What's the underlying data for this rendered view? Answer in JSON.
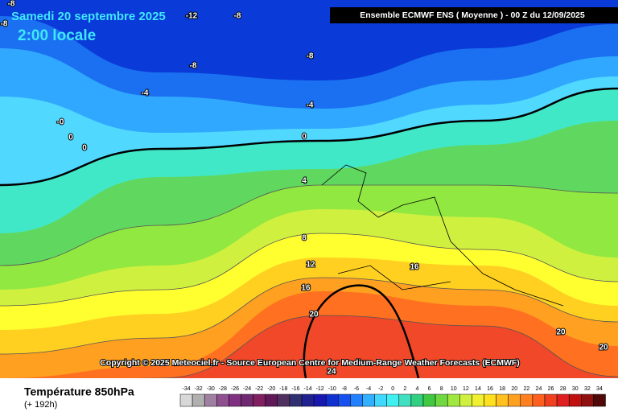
{
  "title": {
    "date": "Samedi 20 septembre 2025",
    "time": "2:00 locale"
  },
  "header": "Ensemble ECMWF ENS  ( Moyenne )  -  00 Z du 12/09/2025",
  "contour_labels": [
    "-8",
    "-12",
    "-8",
    "-8",
    "-8",
    "-8",
    "-4",
    "-4",
    "-0",
    "0",
    "0",
    "0",
    "4",
    "8",
    "12",
    "16",
    "16",
    "20",
    "20",
    "20",
    "24"
  ],
  "copyright": "Copyright © 2025 Meteociel.fr - Source European Centre for Medium-Range Weather Forecasts (ECMWF)",
  "footer": {
    "variable": "Température 850hPa",
    "lead": "(+ 192h)"
  },
  "legend": {
    "labels": [
      "-34",
      "-32",
      "-30",
      "-28",
      "-26",
      "-24",
      "-22",
      "-20",
      "-18",
      "-16",
      "-14",
      "-12",
      "-10",
      "-8",
      "-6",
      "-4",
      "-2",
      "0",
      "2",
      "4",
      "6",
      "8",
      "10",
      "12",
      "14",
      "16",
      "18",
      "20",
      "22",
      "24",
      "26",
      "28",
      "30",
      "32",
      "34"
    ],
    "colors": [
      "#d8d8d8",
      "#b0b0b0",
      "#a080a0",
      "#905090",
      "#803080",
      "#702870",
      "#802060",
      "#601858",
      "#503060",
      "#303070",
      "#202090",
      "#1818b0",
      "#1030d0",
      "#1850f0",
      "#2080ff",
      "#30b0ff",
      "#40d8ff",
      "#40f0f0",
      "#40e0c0",
      "#30d080",
      "#40c840",
      "#70d840",
      "#a0e840",
      "#d0f040",
      "#f0f030",
      "#ffe020",
      "#ffc020",
      "#ffa020",
      "#ff8020",
      "#ff6020",
      "#f04020",
      "#e02020",
      "#c01010",
      "#901010",
      "#500808"
    ]
  }
}
